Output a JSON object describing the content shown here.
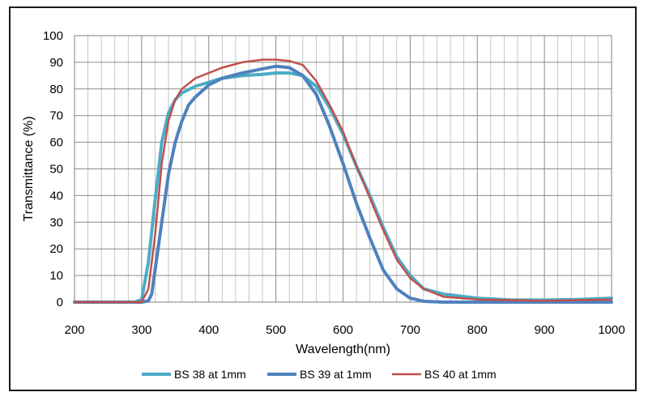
{
  "chart_data": {
    "type": "line",
    "title": "",
    "xlabel": "Wavelength(nm)",
    "ylabel": "Transmittance (%)",
    "xlim": [
      200,
      1000
    ],
    "ylim": [
      0,
      100
    ],
    "x_ticks": [
      200,
      300,
      400,
      500,
      600,
      700,
      800,
      900,
      1000
    ],
    "y_ticks": [
      0,
      10,
      20,
      30,
      40,
      50,
      60,
      70,
      80,
      90,
      100
    ],
    "grid": true,
    "legend_position": "bottom",
    "series": [
      {
        "name": "BS 38 at 1mm",
        "color": "#4bacc6",
        "points": [
          [
            200,
            0
          ],
          [
            290,
            0
          ],
          [
            300,
            1
          ],
          [
            310,
            15
          ],
          [
            320,
            38
          ],
          [
            330,
            60
          ],
          [
            340,
            71
          ],
          [
            350,
            76
          ],
          [
            360,
            78.5
          ],
          [
            380,
            81
          ],
          [
            400,
            82.5
          ],
          [
            420,
            84
          ],
          [
            450,
            85
          ],
          [
            480,
            85.5
          ],
          [
            500,
            86
          ],
          [
            520,
            86
          ],
          [
            540,
            85
          ],
          [
            560,
            81
          ],
          [
            580,
            73
          ],
          [
            600,
            63
          ],
          [
            620,
            51
          ],
          [
            640,
            40
          ],
          [
            660,
            28
          ],
          [
            680,
            17
          ],
          [
            700,
            10
          ],
          [
            720,
            5
          ],
          [
            750,
            3
          ],
          [
            800,
            1.5
          ],
          [
            850,
            0.8
          ],
          [
            900,
            0.8
          ],
          [
            950,
            1
          ],
          [
            1000,
            1.5
          ]
        ]
      },
      {
        "name": "BS 39 at 1mm",
        "color": "#4f81bd",
        "points": [
          [
            200,
            0
          ],
          [
            300,
            0
          ],
          [
            310,
            0.5
          ],
          [
            315,
            3
          ],
          [
            320,
            12
          ],
          [
            330,
            30
          ],
          [
            340,
            48
          ],
          [
            350,
            60
          ],
          [
            360,
            68
          ],
          [
            370,
            74
          ],
          [
            380,
            77
          ],
          [
            400,
            81.5
          ],
          [
            420,
            84
          ],
          [
            450,
            86
          ],
          [
            480,
            87.5
          ],
          [
            500,
            88.5
          ],
          [
            520,
            88
          ],
          [
            540,
            85
          ],
          [
            560,
            78
          ],
          [
            580,
            66
          ],
          [
            600,
            52
          ],
          [
            620,
            37
          ],
          [
            640,
            24
          ],
          [
            660,
            12
          ],
          [
            680,
            5
          ],
          [
            700,
            1.5
          ],
          [
            720,
            0.3
          ],
          [
            750,
            0
          ],
          [
            1000,
            0
          ]
        ]
      },
      {
        "name": "BS 40 at 1mm",
        "color": "#c0504d",
        "points": [
          [
            200,
            0
          ],
          [
            300,
            0
          ],
          [
            310,
            5
          ],
          [
            320,
            25
          ],
          [
            330,
            52
          ],
          [
            340,
            68
          ],
          [
            350,
            76
          ],
          [
            360,
            80
          ],
          [
            380,
            84
          ],
          [
            400,
            86
          ],
          [
            420,
            88
          ],
          [
            450,
            90
          ],
          [
            480,
            91
          ],
          [
            500,
            91
          ],
          [
            520,
            90.5
          ],
          [
            540,
            89
          ],
          [
            560,
            83
          ],
          [
            580,
            74
          ],
          [
            600,
            64
          ],
          [
            620,
            51
          ],
          [
            640,
            39
          ],
          [
            660,
            27
          ],
          [
            680,
            16
          ],
          [
            700,
            9
          ],
          [
            720,
            5
          ],
          [
            750,
            2
          ],
          [
            800,
            1
          ],
          [
            900,
            0.5
          ],
          [
            1000,
            1
          ]
        ]
      }
    ]
  }
}
